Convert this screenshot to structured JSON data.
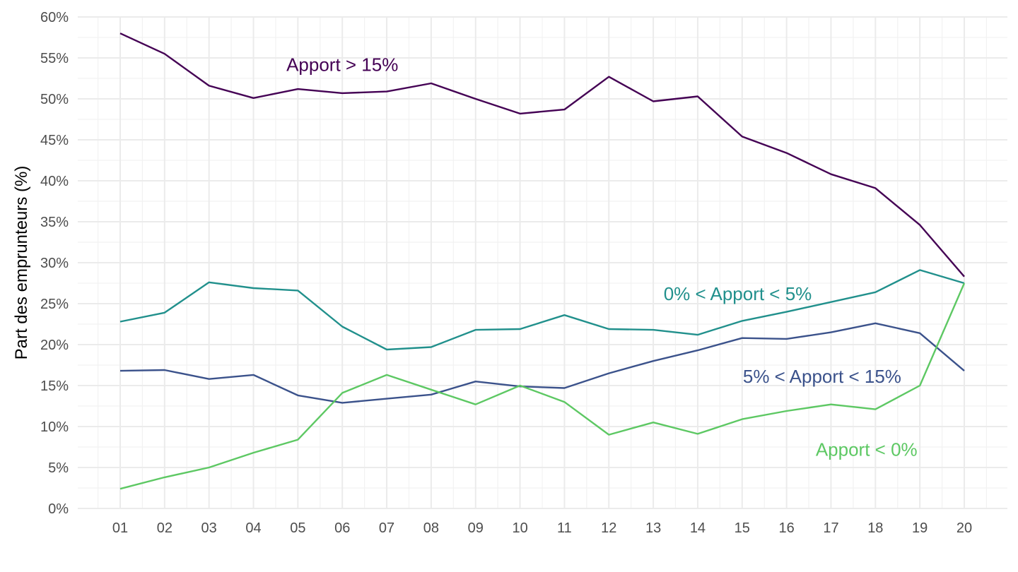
{
  "chart_data": {
    "type": "line",
    "title": "",
    "xlabel": "",
    "ylabel": "Part des emprunteurs (%)",
    "ylim": [
      0,
      60
    ],
    "yticks": [
      0,
      5,
      10,
      15,
      20,
      25,
      30,
      35,
      40,
      45,
      50,
      55,
      60
    ],
    "ytick_labels": [
      "0%",
      "5%",
      "10%",
      "15%",
      "20%",
      "25%",
      "30%",
      "35%",
      "40%",
      "45%",
      "50%",
      "55%",
      "60%"
    ],
    "x": [
      "01",
      "02",
      "03",
      "04",
      "05",
      "06",
      "07",
      "08",
      "09",
      "10",
      "11",
      "12",
      "13",
      "14",
      "15",
      "16",
      "17",
      "18",
      "19",
      "20"
    ],
    "grid": true,
    "legend": "direct-labels",
    "series": [
      {
        "name": "Apport > 15%",
        "color": "#440154",
        "values": [
          58.0,
          55.5,
          51.6,
          50.1,
          51.2,
          50.7,
          50.9,
          51.9,
          50.0,
          48.2,
          48.7,
          52.7,
          49.7,
          50.3,
          45.4,
          43.4,
          40.8,
          39.1,
          34.6,
          28.3
        ],
        "label_anchor": {
          "x_index": 6.0,
          "y": 54.2
        }
      },
      {
        "name": "0% < Apport < 5%",
        "color": "#21908C",
        "values": [
          22.8,
          23.9,
          27.6,
          26.9,
          26.6,
          22.2,
          19.4,
          19.7,
          21.8,
          21.9,
          23.6,
          21.9,
          21.8,
          21.2,
          22.9,
          24.0,
          25.2,
          26.4,
          29.1,
          27.5
        ],
        "label_anchor": {
          "x_index": 14.9,
          "y": 26.2
        }
      },
      {
        "name": "5% < Apport < 15%",
        "color": "#3B528B",
        "values": [
          16.8,
          16.9,
          15.8,
          16.3,
          13.8,
          12.9,
          13.4,
          13.9,
          15.5,
          14.9,
          14.7,
          16.5,
          18.0,
          19.3,
          20.8,
          20.7,
          21.5,
          22.6,
          21.4,
          16.8
        ],
        "label_anchor": {
          "x_index": 16.8,
          "y": 16.1
        }
      },
      {
        "name": "Apport < 0%",
        "color": "#5DC863",
        "values": [
          2.4,
          3.8,
          5.0,
          6.8,
          8.4,
          14.1,
          16.3,
          14.5,
          12.7,
          15.0,
          13.0,
          9.0,
          10.5,
          9.1,
          10.9,
          11.9,
          12.7,
          12.1,
          15.0,
          27.5
        ],
        "label_anchor": {
          "x_index": 17.8,
          "y": 7.2
        }
      }
    ]
  }
}
